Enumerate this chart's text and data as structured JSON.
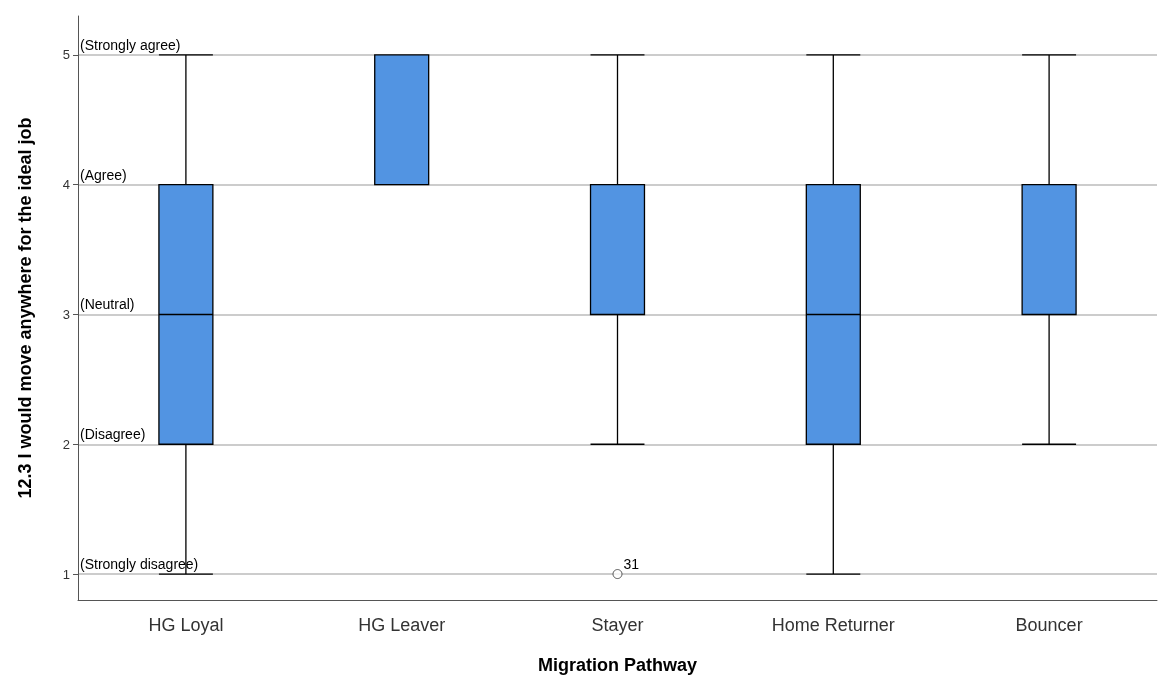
{
  "chart_data": {
    "type": "box",
    "xlabel": "Migration Pathway",
    "ylabel": "12.3 I would move anywhere for the ideal job",
    "categories": [
      "HG Loyal",
      "HG Leaver",
      "Stayer",
      "Home Returner",
      "Bouncer"
    ],
    "color": "#5294e2",
    "boxes": [
      {
        "low": 1,
        "q1": 2,
        "median": 3,
        "q3": 4,
        "high": 5
      },
      {
        "low": 4,
        "q1": 4,
        "median": 4,
        "q3": 5,
        "high": 5
      },
      {
        "low": 2,
        "q1": 3,
        "median": 4,
        "q3": 4,
        "high": 5,
        "outliers": [
          1
        ]
      },
      {
        "low": 1,
        "q1": 2,
        "median": 3,
        "q3": 4,
        "high": 5
      },
      {
        "low": 2,
        "q1": 3,
        "median": 3,
        "q3": 4,
        "high": 5
      }
    ],
    "ylim": [
      0.8,
      5.3
    ],
    "yticks": [
      1,
      2,
      3,
      4,
      5
    ],
    "grid": "y",
    "annotations": [
      "(Strongly agree)",
      "(Agree)",
      "(Neutral)",
      "(Disagree)",
      "(Strongly disagree)",
      "31"
    ]
  }
}
